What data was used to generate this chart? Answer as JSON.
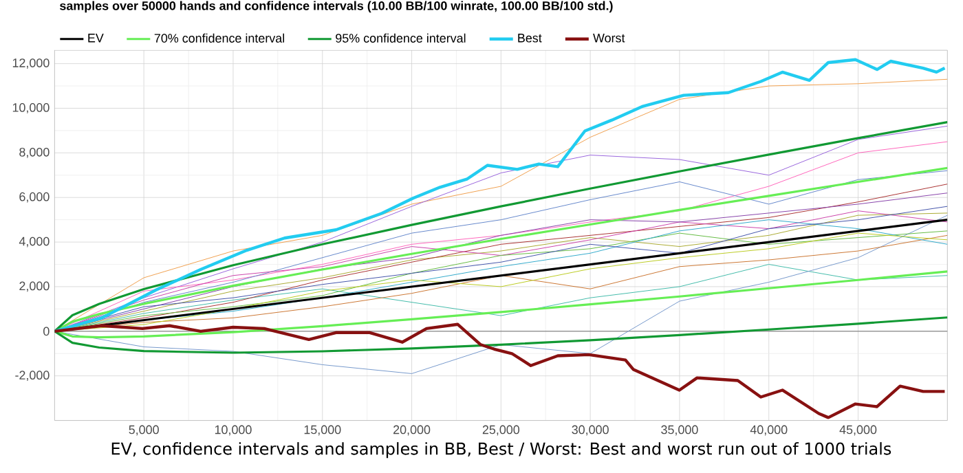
{
  "chart_data": {
    "type": "line",
    "title": "samples over 50000 hands and confidence intervals (10.00 BB/100 winrate, 100.00 BB/100 std.)",
    "xlabel": "EV, confidence intervals and samples in BB, Best / Worst: Best and worst run out of 1000 trials",
    "x": [
      0,
      5000,
      10000,
      15000,
      20000,
      25000,
      30000,
      35000,
      40000,
      45000,
      50000
    ],
    "xlim": [
      0,
      50000
    ],
    "xticks": [
      {
        "value": 5000,
        "label": "5,000"
      },
      {
        "value": 10000,
        "label": "10,000"
      },
      {
        "value": 15000,
        "label": "15,000"
      },
      {
        "value": 20000,
        "label": "20,000"
      },
      {
        "value": 25000,
        "label": "25,000"
      },
      {
        "value": 30000,
        "label": "30,000"
      },
      {
        "value": 35000,
        "label": "35,000"
      },
      {
        "value": 40000,
        "label": "40,000"
      },
      {
        "value": 45000,
        "label": "45,000"
      }
    ],
    "ylim": [
      -4000,
      12600
    ],
    "yticks": [
      {
        "value": -2000,
        "label": "-2,000"
      },
      0,
      {
        "value": 2000,
        "label": "2,000"
      },
      {
        "value": 4000,
        "label": "4,000"
      },
      {
        "value": 6000,
        "label": "6,000"
      },
      {
        "value": 8000,
        "label": "8,000"
      },
      {
        "value": 10000,
        "label": "10,000"
      },
      {
        "value": 12000,
        "label": "12,000"
      }
    ],
    "grid": true,
    "legend": "top",
    "marker": "none",
    "line_style": "solid",
    "ref_lines": [
      {
        "axis": "y",
        "value": 0,
        "color": "#555555"
      }
    ],
    "series": [
      {
        "color": "#f0a050",
        "values": [
          0,
          2400,
          3600,
          4300,
          5700,
          6500,
          8700,
          10400,
          11000,
          11100,
          11300
        ]
      },
      {
        "color": "#9966dd",
        "values": [
          0,
          1500,
          2800,
          4000,
          5600,
          7100,
          7900,
          7700,
          7000,
          8600,
          9200
        ]
      },
      {
        "color": "#ff66bb",
        "values": [
          0,
          1800,
          2300,
          3000,
          3900,
          4300,
          4900,
          5400,
          6500,
          8000,
          8500
        ]
      },
      {
        "color": "#6688cc",
        "values": [
          0,
          1300,
          2200,
          3300,
          4400,
          5000,
          5900,
          6700,
          5700,
          6800,
          7200
        ]
      },
      {
        "color": "#44bbaa",
        "values": [
          0,
          800,
          1400,
          1900,
          1300,
          700,
          1500,
          2000,
          3000,
          2300,
          2500
        ]
      },
      {
        "color": "#7799cc",
        "values": [
          0,
          -700,
          -900,
          -1500,
          -1900,
          -600,
          -1000,
          1350,
          2200,
          3300,
          5200
        ]
      },
      {
        "color": "#aaaa33",
        "values": [
          0,
          900,
          1800,
          2400,
          3200,
          3600,
          4200,
          3800,
          4300,
          5200,
          5300
        ]
      },
      {
        "color": "#aa3333",
        "values": [
          0,
          600,
          1300,
          2300,
          3100,
          3900,
          4300,
          4700,
          5100,
          5800,
          6600
        ]
      },
      {
        "color": "#cc44aa",
        "values": [
          0,
          1400,
          2500,
          2900,
          3800,
          3400,
          4100,
          4900,
          4600,
          5400,
          4900
        ]
      },
      {
        "color": "#66bb44",
        "values": [
          0,
          700,
          1100,
          1600,
          2600,
          3400,
          3700,
          4400,
          3900,
          4200,
          4500
        ]
      },
      {
        "color": "#cc7733",
        "values": [
          0,
          400,
          600,
          1100,
          1700,
          2500,
          1900,
          2900,
          3200,
          3600,
          4300
        ]
      },
      {
        "color": "#8844aa",
        "values": [
          0,
          1000,
          2000,
          2800,
          3300,
          4300,
          5000,
          4900,
          5300,
          5700,
          6200
        ]
      },
      {
        "color": "#33aacc",
        "values": [
          0,
          500,
          900,
          1500,
          2200,
          2900,
          3500,
          4500,
          5000,
          4600,
          3900
        ]
      },
      {
        "color": "#4455aa",
        "values": [
          0,
          1100,
          1500,
          2100,
          2600,
          3100,
          3900,
          3500,
          4600,
          5000,
          5600
        ]
      },
      {
        "color": "#bbcc22",
        "values": [
          0,
          300,
          1000,
          1800,
          2300,
          2000,
          2800,
          3300,
          3700,
          4400,
          4100
        ]
      },
      {
        "name": "EV",
        "color": "#000000",
        "x": [
          0,
          10000,
          20000,
          30000,
          40000,
          50000
        ],
        "values": [
          0,
          1000,
          2000,
          3000,
          4000,
          5000
        ]
      },
      {
        "name": "70% confidence interval",
        "color": "#66ee55",
        "x": [
          0,
          1000,
          2500,
          5000,
          10000,
          15000,
          20000,
          25000,
          30000,
          35000,
          40000,
          45000,
          50000
        ],
        "values": [
          0,
          430,
          770,
          1230,
          2040,
          2770,
          3470,
          4140,
          4790,
          5440,
          6070,
          6700,
          7320
        ]
      },
      {
        "color": "#66ee55",
        "x": [
          0,
          1000,
          2500,
          5000,
          10000,
          15000,
          20000,
          25000,
          30000,
          35000,
          40000,
          45000,
          50000
        ],
        "values": [
          0,
          -230,
          -270,
          -230,
          -40,
          230,
          540,
          860,
          1210,
          1560,
          1930,
          2300,
          2680
        ]
      },
      {
        "name": "95% confidence interval",
        "color": "#119933",
        "x": [
          0,
          1000,
          2500,
          5000,
          10000,
          15000,
          20000,
          25000,
          30000,
          35000,
          40000,
          45000,
          50000
        ],
        "values": [
          0,
          720,
          1230,
          1890,
          2960,
          3900,
          4770,
          5600,
          6400,
          7170,
          7920,
          8660,
          9380
        ]
      },
      {
        "color": "#119933",
        "x": [
          0,
          1000,
          2500,
          5000,
          10000,
          15000,
          20000,
          25000,
          30000,
          35000,
          40000,
          45000,
          50000
        ],
        "values": [
          0,
          -520,
          -730,
          -890,
          -960,
          -900,
          -770,
          -600,
          -400,
          -170,
          80,
          340,
          620
        ]
      },
      {
        "name": "Best",
        "color": "#22ccf0",
        "x": [
          0,
          2650,
          5680,
          8180,
          10760,
          12880,
          15760,
          18330,
          20080,
          21590,
          23110,
          24240,
          25910,
          27120,
          28180,
          29700,
          31210,
          32950,
          35230,
          37730,
          39550,
          40760,
          42270,
          43330,
          44850,
          46060,
          46820,
          48640,
          49390,
          49850
        ],
        "values": [
          0,
          600,
          1850,
          2770,
          3630,
          4180,
          4550,
          5290,
          5970,
          6460,
          6830,
          7440,
          7260,
          7500,
          7380,
          8980,
          9470,
          10090,
          10580,
          10700,
          11200,
          11620,
          11250,
          12050,
          12180,
          11740,
          12110,
          11800,
          11620,
          11800
        ]
      },
      {
        "name": "Worst",
        "color": "#881111",
        "x": [
          0,
          2650,
          4920,
          6440,
          8180,
          10000,
          11740,
          14240,
          15760,
          17650,
          19470,
          20830,
          22580,
          23860,
          24620,
          25610,
          26670,
          28180,
          29920,
          31970,
          32420,
          34990,
          35980,
          38260,
          39550,
          40760,
          42800,
          43330,
          44850,
          46060,
          47350,
          48640,
          49850
        ],
        "values": [
          0,
          250,
          120,
          250,
          0,
          180,
          120,
          -370,
          -60,
          -60,
          -490,
          120,
          310,
          -600,
          -800,
          -1000,
          -1540,
          -1100,
          -1050,
          -1290,
          -1720,
          -2640,
          -2090,
          -2210,
          -2950,
          -2640,
          -3690,
          -3870,
          -3260,
          -3380,
          -2460,
          -2700,
          -2700
        ]
      }
    ]
  }
}
